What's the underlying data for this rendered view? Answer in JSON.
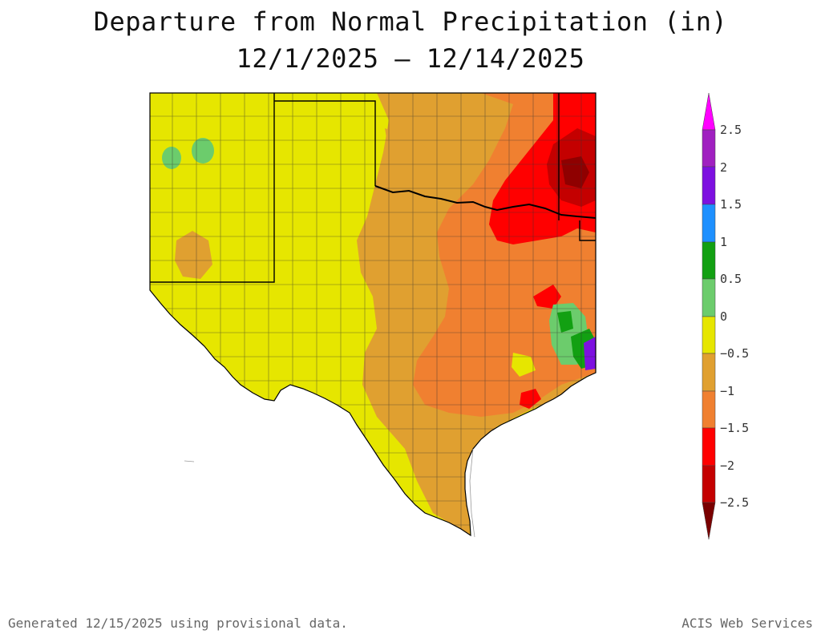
{
  "title": {
    "line1": "Departure from Normal Precipitation (in)",
    "line2": "12/1/2025 – 12/14/2025"
  },
  "legend": {
    "labels": [
      "2.5",
      "2",
      "1.5",
      "1",
      "0.5",
      "0",
      "−0.5",
      "−1",
      "−1.5",
      "−2",
      "−2.5"
    ],
    "colors": [
      "#ff00ff",
      "#a020c0",
      "#7d10e0",
      "#1e90ff",
      "#12a012",
      "#6ccc6c",
      "#e6e600",
      "#e0a030",
      "#f08030",
      "#ff0000",
      "#c40000",
      "#7a0000"
    ]
  },
  "footer": {
    "left": "Generated 12/15/2025  using provisional data.",
    "right": "ACIS Web Services"
  }
}
